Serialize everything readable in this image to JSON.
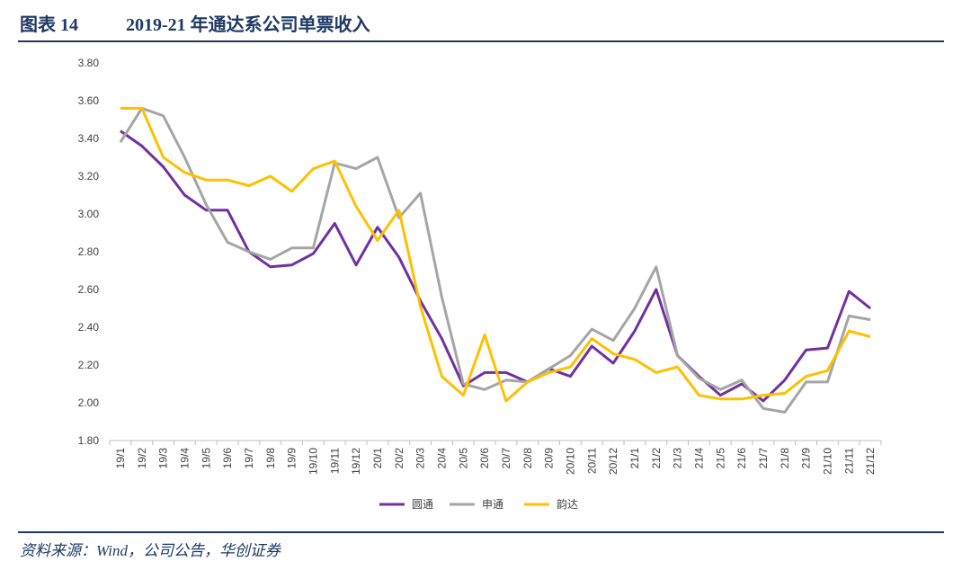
{
  "chart_data": {
    "type": "line",
    "figure_label": "图表 14",
    "title": "2019-21 年通达系公司单票收入",
    "source": "资料来源：Wind，公司公告，华创证券",
    "categories": [
      "19/1",
      "19/2",
      "19/3",
      "19/4",
      "19/5",
      "19/6",
      "19/7",
      "19/8",
      "19/9",
      "19/10",
      "19/11",
      "19/12",
      "20/1",
      "20/2",
      "20/3",
      "20/4",
      "20/5",
      "20/6",
      "20/7",
      "20/8",
      "20/9",
      "20/10",
      "20/11",
      "20/12",
      "21/1",
      "21/2",
      "21/3",
      "21/4",
      "21/5",
      "21/6",
      "21/7",
      "21/8",
      "21/9",
      "21/10",
      "21/11",
      "21/12"
    ],
    "series": [
      {
        "name": "圆通",
        "color": "#7030a0",
        "values": [
          3.44,
          3.36,
          3.25,
          3.1,
          3.02,
          3.02,
          2.8,
          2.72,
          2.73,
          2.79,
          2.95,
          2.73,
          2.93,
          2.77,
          2.54,
          2.34,
          2.09,
          2.16,
          2.16,
          2.11,
          2.18,
          2.14,
          2.3,
          2.21,
          2.38,
          2.6,
          2.25,
          2.14,
          2.04,
          2.1,
          2.01,
          2.12,
          2.28,
          2.29,
          2.59,
          2.5
        ]
      },
      {
        "name": "申通",
        "color": "#a5a5a5",
        "values": [
          3.38,
          3.56,
          3.52,
          3.3,
          3.05,
          2.85,
          2.8,
          2.76,
          2.82,
          2.82,
          3.27,
          3.24,
          3.3,
          2.98,
          3.11,
          2.56,
          2.1,
          2.07,
          2.12,
          2.11,
          2.18,
          2.25,
          2.39,
          2.33,
          2.5,
          2.72,
          2.25,
          2.13,
          2.07,
          2.12,
          1.97,
          1.95,
          2.11,
          2.11,
          2.46,
          2.44
        ]
      },
      {
        "name": "韵达",
        "color": "#ffc000",
        "values": [
          3.56,
          3.56,
          3.3,
          3.22,
          3.18,
          3.18,
          3.15,
          3.2,
          3.12,
          3.24,
          3.28,
          3.04,
          2.86,
          3.02,
          2.51,
          2.14,
          2.04,
          2.36,
          2.01,
          2.11,
          2.16,
          2.19,
          2.34,
          2.26,
          2.23,
          2.16,
          2.19,
          2.04,
          2.02,
          2.02,
          2.04,
          2.05,
          2.14,
          2.17,
          2.38,
          2.35
        ]
      }
    ],
    "ylim": [
      1.8,
      3.8
    ],
    "yticks": [
      {
        "value": 1.8,
        "label": "1.80"
      },
      {
        "value": 2.0,
        "label": "2.00"
      },
      {
        "value": 2.2,
        "label": "2.20"
      },
      {
        "value": 2.4,
        "label": "2.40"
      },
      {
        "value": 2.6,
        "label": "2.60"
      },
      {
        "value": 2.8,
        "label": "2.80"
      },
      {
        "value": 3.0,
        "label": "3.00"
      },
      {
        "value": 3.2,
        "label": "3.20"
      },
      {
        "value": 3.4,
        "label": "3.40"
      },
      {
        "value": 3.6,
        "label": "3.60"
      },
      {
        "value": 3.8,
        "label": "3.80"
      }
    ],
    "grid": false,
    "legend": "bottom"
  }
}
